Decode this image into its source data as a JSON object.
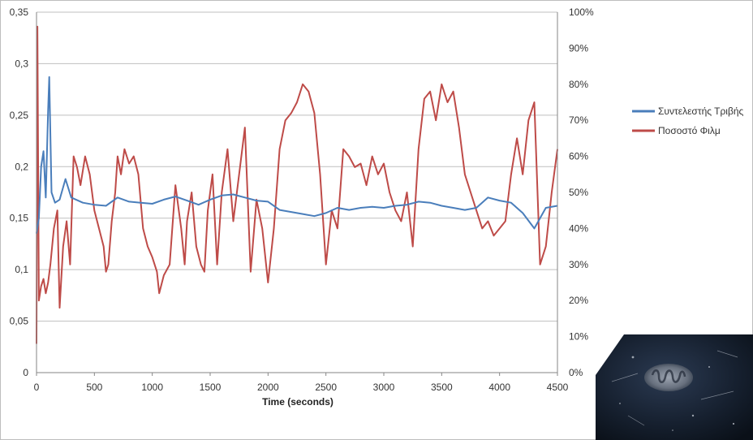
{
  "chart_data": {
    "type": "line",
    "xlabel": "Time (seconds)",
    "xlim": [
      0,
      4500
    ],
    "x_ticks": [
      "0",
      "500",
      "1000",
      "1500",
      "2000",
      "2500",
      "3000",
      "3500",
      "4000",
      "4500"
    ],
    "ylim_left": [
      0,
      0.35
    ],
    "y_left_ticks": [
      "0",
      "0,05",
      "0,1",
      "0,15",
      "0,2",
      "0,25",
      "0,3",
      "0,35"
    ],
    "ylim_right": [
      0,
      100
    ],
    "y_right_ticks": [
      "0%",
      "10%",
      "20%",
      "30%",
      "40%",
      "50%",
      "60%",
      "70%",
      "80%",
      "90%",
      "100%"
    ],
    "grid": "horizontal",
    "legend_position": "right",
    "series": [
      {
        "name": "Συντελεστής Τριβής",
        "axis": "left",
        "color": "#4a7ebb",
        "x": [
          0,
          20,
          40,
          60,
          80,
          100,
          110,
          130,
          160,
          200,
          250,
          300,
          400,
          500,
          600,
          700,
          800,
          900,
          1000,
          1100,
          1200,
          1300,
          1400,
          1500,
          1600,
          1700,
          1800,
          1900,
          2000,
          2100,
          2200,
          2300,
          2400,
          2500,
          2600,
          2700,
          2800,
          2900,
          3000,
          3100,
          3200,
          3300,
          3400,
          3500,
          3600,
          3700,
          3800,
          3900,
          4000,
          4100,
          4200,
          4300,
          4400,
          4500
        ],
        "y": [
          0.135,
          0.15,
          0.2,
          0.215,
          0.17,
          0.255,
          0.287,
          0.175,
          0.165,
          0.168,
          0.188,
          0.17,
          0.165,
          0.163,
          0.162,
          0.17,
          0.166,
          0.165,
          0.164,
          0.168,
          0.171,
          0.167,
          0.163,
          0.168,
          0.172,
          0.173,
          0.17,
          0.167,
          0.166,
          0.158,
          0.156,
          0.154,
          0.152,
          0.155,
          0.16,
          0.158,
          0.16,
          0.161,
          0.16,
          0.162,
          0.163,
          0.166,
          0.165,
          0.162,
          0.16,
          0.158,
          0.16,
          0.17,
          0.167,
          0.165,
          0.155,
          0.14,
          0.16,
          0.162
        ]
      },
      {
        "name": "Ποσοστό Φιλμ",
        "axis": "right",
        "color": "#be4b48",
        "x": [
          0,
          8,
          20,
          40,
          60,
          80,
          100,
          120,
          150,
          180,
          200,
          230,
          260,
          290,
          320,
          350,
          380,
          420,
          460,
          500,
          540,
          580,
          600,
          620,
          650,
          680,
          700,
          730,
          760,
          800,
          840,
          880,
          920,
          960,
          1000,
          1040,
          1060,
          1100,
          1150,
          1200,
          1250,
          1280,
          1300,
          1340,
          1380,
          1420,
          1450,
          1480,
          1520,
          1560,
          1600,
          1650,
          1700,
          1750,
          1800,
          1850,
          1900,
          1950,
          2000,
          2050,
          2100,
          2150,
          2200,
          2250,
          2300,
          2350,
          2400,
          2450,
          2500,
          2550,
          2600,
          2650,
          2700,
          2750,
          2800,
          2850,
          2900,
          2950,
          3000,
          3050,
          3100,
          3150,
          3200,
          3250,
          3300,
          3350,
          3400,
          3450,
          3500,
          3550,
          3600,
          3650,
          3700,
          3750,
          3800,
          3850,
          3900,
          3950,
          4000,
          4050,
          4100,
          4150,
          4200,
          4250,
          4300,
          4350,
          4400,
          4450,
          4500
        ],
        "y": [
          8,
          96,
          20,
          24,
          26,
          22,
          25,
          30,
          40,
          45,
          18,
          35,
          42,
          30,
          60,
          57,
          52,
          60,
          55,
          45,
          40,
          35,
          28,
          30,
          42,
          50,
          60,
          55,
          62,
          58,
          60,
          55,
          40,
          35,
          32,
          28,
          22,
          27,
          30,
          52,
          40,
          30,
          42,
          50,
          35,
          30,
          28,
          45,
          55,
          30,
          50,
          62,
          42,
          55,
          68,
          28,
          48,
          40,
          25,
          40,
          62,
          70,
          72,
          75,
          80,
          78,
          72,
          55,
          30,
          45,
          40,
          62,
          60,
          57,
          58,
          52,
          60,
          55,
          58,
          50,
          45,
          42,
          50,
          35,
          62,
          76,
          78,
          70,
          80,
          75,
          78,
          68,
          55,
          50,
          45,
          40,
          42,
          38,
          40,
          42,
          55,
          65,
          55,
          70,
          75,
          30,
          35,
          50,
          62
        ]
      }
    ]
  },
  "inset_photo": {
    "colors": [
      "#0f1722",
      "#2b3a52",
      "#8c96a6"
    ]
  }
}
